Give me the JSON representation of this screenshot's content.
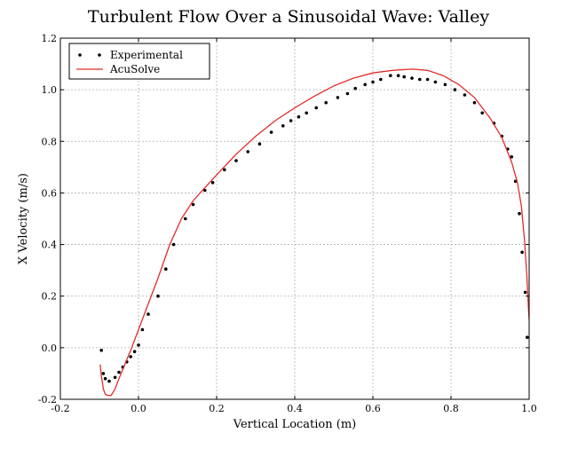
{
  "chart_data": {
    "type": "line",
    "title": "Turbulent Flow Over a Sinusoidal Wave: Valley",
    "xlabel": "Vertical Location (m)",
    "ylabel": "X Velocity (m/s)",
    "xlim": [
      -0.2,
      1.0
    ],
    "ylim": [
      -0.2,
      1.2
    ],
    "xticks": [
      -0.2,
      0.0,
      0.2,
      0.4,
      0.6,
      0.8,
      1.0
    ],
    "xtick_labels": [
      "-0.2",
      "0.0",
      "0.2",
      "0.4",
      "0.6",
      "0.8",
      "1.0"
    ],
    "yticks": [
      -0.2,
      0.0,
      0.2,
      0.4,
      0.6,
      0.8,
      1.0,
      1.2
    ],
    "ytick_labels": [
      "-0.2",
      "0.0",
      "0.2",
      "0.4",
      "0.6",
      "0.8",
      "1.0",
      "1.2"
    ],
    "grid": true,
    "legend_position": "top-left",
    "series": [
      {
        "name": "Experimental",
        "kind": "scatter",
        "color": "#000000",
        "x": [
          -0.095,
          -0.09,
          -0.085,
          -0.075,
          -0.06,
          -0.05,
          -0.04,
          -0.03,
          -0.02,
          -0.01,
          0.0,
          0.01,
          0.025,
          0.05,
          0.07,
          0.09,
          0.12,
          0.14,
          0.17,
          0.19,
          0.22,
          0.25,
          0.28,
          0.31,
          0.34,
          0.37,
          0.39,
          0.41,
          0.43,
          0.455,
          0.48,
          0.51,
          0.535,
          0.555,
          0.58,
          0.6,
          0.62,
          0.645,
          0.665,
          0.68,
          0.7,
          0.72,
          0.74,
          0.76,
          0.785,
          0.81,
          0.835,
          0.86,
          0.88,
          0.91,
          0.93,
          0.945,
          0.955,
          0.965,
          0.975,
          0.982,
          0.99,
          0.995
        ],
        "y": [
          -0.01,
          -0.1,
          -0.12,
          -0.13,
          -0.115,
          -0.095,
          -0.075,
          -0.055,
          -0.035,
          -0.015,
          0.01,
          0.07,
          0.13,
          0.2,
          0.305,
          0.4,
          0.5,
          0.555,
          0.61,
          0.64,
          0.69,
          0.725,
          0.76,
          0.79,
          0.835,
          0.86,
          0.88,
          0.895,
          0.91,
          0.93,
          0.95,
          0.97,
          0.985,
          1.005,
          1.02,
          1.03,
          1.04,
          1.055,
          1.055,
          1.05,
          1.045,
          1.04,
          1.04,
          1.03,
          1.02,
          1.0,
          0.98,
          0.95,
          0.91,
          0.87,
          0.82,
          0.77,
          0.74,
          0.645,
          0.52,
          0.37,
          0.215,
          0.04
        ]
      },
      {
        "name": "AcuSolve",
        "kind": "line",
        "color": "#e32b2b",
        "x": [
          -0.098,
          -0.095,
          -0.09,
          -0.085,
          -0.08,
          -0.07,
          -0.06,
          -0.05,
          -0.035,
          -0.02,
          0.0,
          0.025,
          0.05,
          0.08,
          0.11,
          0.14,
          0.17,
          0.2,
          0.25,
          0.3,
          0.35,
          0.4,
          0.45,
          0.5,
          0.55,
          0.6,
          0.65,
          0.7,
          0.74,
          0.78,
          0.82,
          0.86,
          0.9,
          0.93,
          0.955,
          0.97,
          0.98,
          0.988,
          0.994,
          0.998,
          1.0
        ],
        "y": [
          -0.065,
          -0.11,
          -0.16,
          -0.18,
          -0.185,
          -0.185,
          -0.16,
          -0.12,
          -0.065,
          -0.01,
          0.07,
          0.17,
          0.27,
          0.4,
          0.5,
          0.57,
          0.62,
          0.67,
          0.75,
          0.82,
          0.88,
          0.93,
          0.975,
          1.015,
          1.045,
          1.065,
          1.075,
          1.08,
          1.075,
          1.055,
          1.02,
          0.97,
          0.89,
          0.815,
          0.72,
          0.64,
          0.55,
          0.42,
          0.28,
          0.16,
          0.11
        ]
      }
    ]
  }
}
